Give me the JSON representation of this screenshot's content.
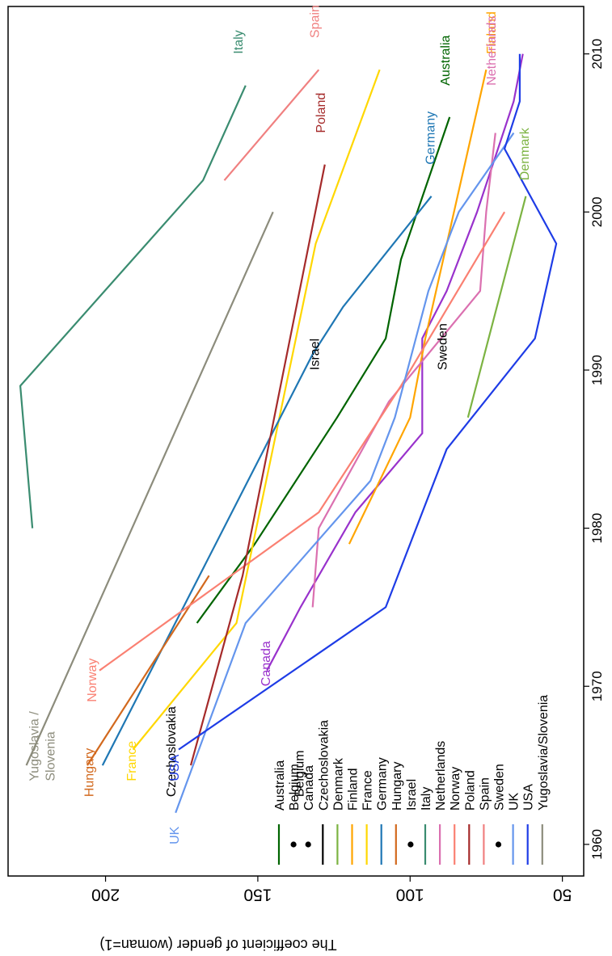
{
  "chart_data": {
    "type": "line",
    "title": "",
    "xlabel": "",
    "ylabel": "The coefficient of gender (woman=1)",
    "xlim": [
      1958,
      2013
    ],
    "ylim": [
      43,
      232
    ],
    "x_ticks": [
      1960,
      1970,
      1980,
      1990,
      2000,
      2010
    ],
    "y_ticks": [
      50,
      100,
      150,
      200
    ],
    "orientation": "rotated 90 degrees clockwise",
    "grid": false,
    "legend": {
      "placement": "bottom-left"
    },
    "series": [
      {
        "name": "Australia",
        "color": "#006400",
        "marker": "line",
        "x": [
          1974,
          1979,
          1987,
          1992,
          1997,
          2006
        ],
        "y": [
          170,
          151,
          124,
          108,
          103,
          87
        ],
        "label": "Australia",
        "label_at": [
          2008,
          87
        ]
      },
      {
        "name": "Belgium",
        "color": "#000000",
        "marker": "dot",
        "x": [],
        "y": [],
        "label": "Belgium",
        "label_at": [
          1963,
          135
        ]
      },
      {
        "name": "Canada",
        "color": "#9932CC",
        "marker": "dot",
        "x": [
          1971,
          1975,
          1981,
          1986,
          1992,
          1995,
          2000,
          2007,
          2010
        ],
        "y": [
          147,
          136,
          118,
          96,
          96,
          88,
          78,
          66,
          63
        ],
        "label": "Canada",
        "label_at": [
          1970,
          146
        ]
      },
      {
        "name": "Czechoslovakia",
        "color": "#000000",
        "marker": "line",
        "x": [],
        "y": [],
        "label": "Czechoslovakia",
        "label_at": [
          1963,
          177
        ]
      },
      {
        "name": "Denmark",
        "color": "#7CB342",
        "marker": "line",
        "x": [
          1987,
          2001
        ],
        "y": [
          81,
          62
        ],
        "label": "Denmark",
        "label_at": [
          2002,
          61
        ]
      },
      {
        "name": "Finland",
        "color": "#FFA500",
        "marker": "line",
        "x": [
          1979,
          1987,
          1992,
          2009
        ],
        "y": [
          120,
          100,
          95,
          75
        ],
        "label": "Finland",
        "label_at": [
          2010,
          72
        ]
      },
      {
        "name": "France",
        "color": "#FFD700",
        "marker": "line",
        "x": [
          1966,
          1974,
          1998,
          2009
        ],
        "y": [
          191,
          157,
          131,
          110
        ],
        "label": "France",
        "label_at": [
          1964,
          190
        ]
      },
      {
        "name": "Germany",
        "color": "#1F77B4",
        "marker": "line",
        "x": [
          1965,
          1991,
          1994,
          2001
        ],
        "y": [
          201,
          132,
          122,
          93
        ],
        "label": "Germany",
        "label_at": [
          2003,
          92
        ]
      },
      {
        "name": "Hungary",
        "color": "#D2691E",
        "marker": "line",
        "x": [
          1965,
          1977
        ],
        "y": [
          206,
          166
        ],
        "label": "Hungary",
        "label_at": [
          1963,
          204
        ]
      },
      {
        "name": "Israel",
        "color": "#000000",
        "marker": "dot",
        "x": [],
        "y": [],
        "label": "Israel",
        "label_at": [
          1990,
          130
        ]
      },
      {
        "name": "Italy",
        "color": "#3A8C70",
        "marker": "line",
        "x": [
          1980,
          1989,
          2002,
          2008
        ],
        "y": [
          224,
          228,
          168,
          154
        ],
        "label": "Italy",
        "label_at": [
          2010,
          155
        ]
      },
      {
        "name": "Netherlands",
        "color": "#DB70B0",
        "marker": "line",
        "x": [
          1975,
          1980,
          1988,
          1995,
          2000,
          2005
        ],
        "y": [
          132,
          130,
          107,
          77,
          75,
          72
        ],
        "label": "Netherlands",
        "label_at": [
          2008,
          72
        ]
      },
      {
        "name": "Norway",
        "color": "#FA8072",
        "marker": "line",
        "x": [
          1971,
          1981,
          1989,
          2000
        ],
        "y": [
          202,
          130,
          103,
          69
        ],
        "label": "Norway",
        "label_at": [
          1969,
          203
        ]
      },
      {
        "name": "Poland",
        "color": "#A52A2A",
        "marker": "line",
        "x": [
          1965,
          1977,
          2003
        ],
        "y": [
          172,
          155,
          128
        ],
        "label": "Poland",
        "label_at": [
          2005,
          128
        ]
      },
      {
        "name": "Spain",
        "color": "#F08080",
        "marker": "line",
        "x": [
          2002,
          2009
        ],
        "y": [
          161,
          130
        ],
        "label": "Spain",
        "label_at": [
          2011,
          130
        ]
      },
      {
        "name": "Sweden",
        "color": "#000000",
        "marker": "dot",
        "x": [],
        "y": [],
        "label": "Sweden",
        "label_at": [
          1990,
          88
        ]
      },
      {
        "name": "UK",
        "color": "#6495ED",
        "marker": "line",
        "x": [
          1962,
          1974,
          1983,
          1987,
          1995,
          2000,
          2005
        ],
        "y": [
          177,
          154,
          113,
          105,
          94,
          84,
          66
        ],
        "label": "UK",
        "label_at": [
          1960,
          176
        ]
      },
      {
        "name": "USA",
        "color": "#1E3CE6",
        "marker": "line",
        "x": [
          1966,
          1975,
          1985,
          1992,
          1998,
          2004,
          2007,
          2010
        ],
        "y": [
          176,
          108,
          88,
          59,
          52,
          69,
          64,
          64
        ],
        "label": "USA",
        "label_at": [
          1964,
          176
        ]
      },
      {
        "name": "Yugoslavia/Slovenia",
        "color": "#8C8C7C",
        "marker": "line",
        "x": [
          1965,
          2000
        ],
        "y": [
          226,
          145
        ],
        "label": "Yugoslavia / Slovenia",
        "label_at": [
          1964,
          222
        ]
      }
    ]
  }
}
